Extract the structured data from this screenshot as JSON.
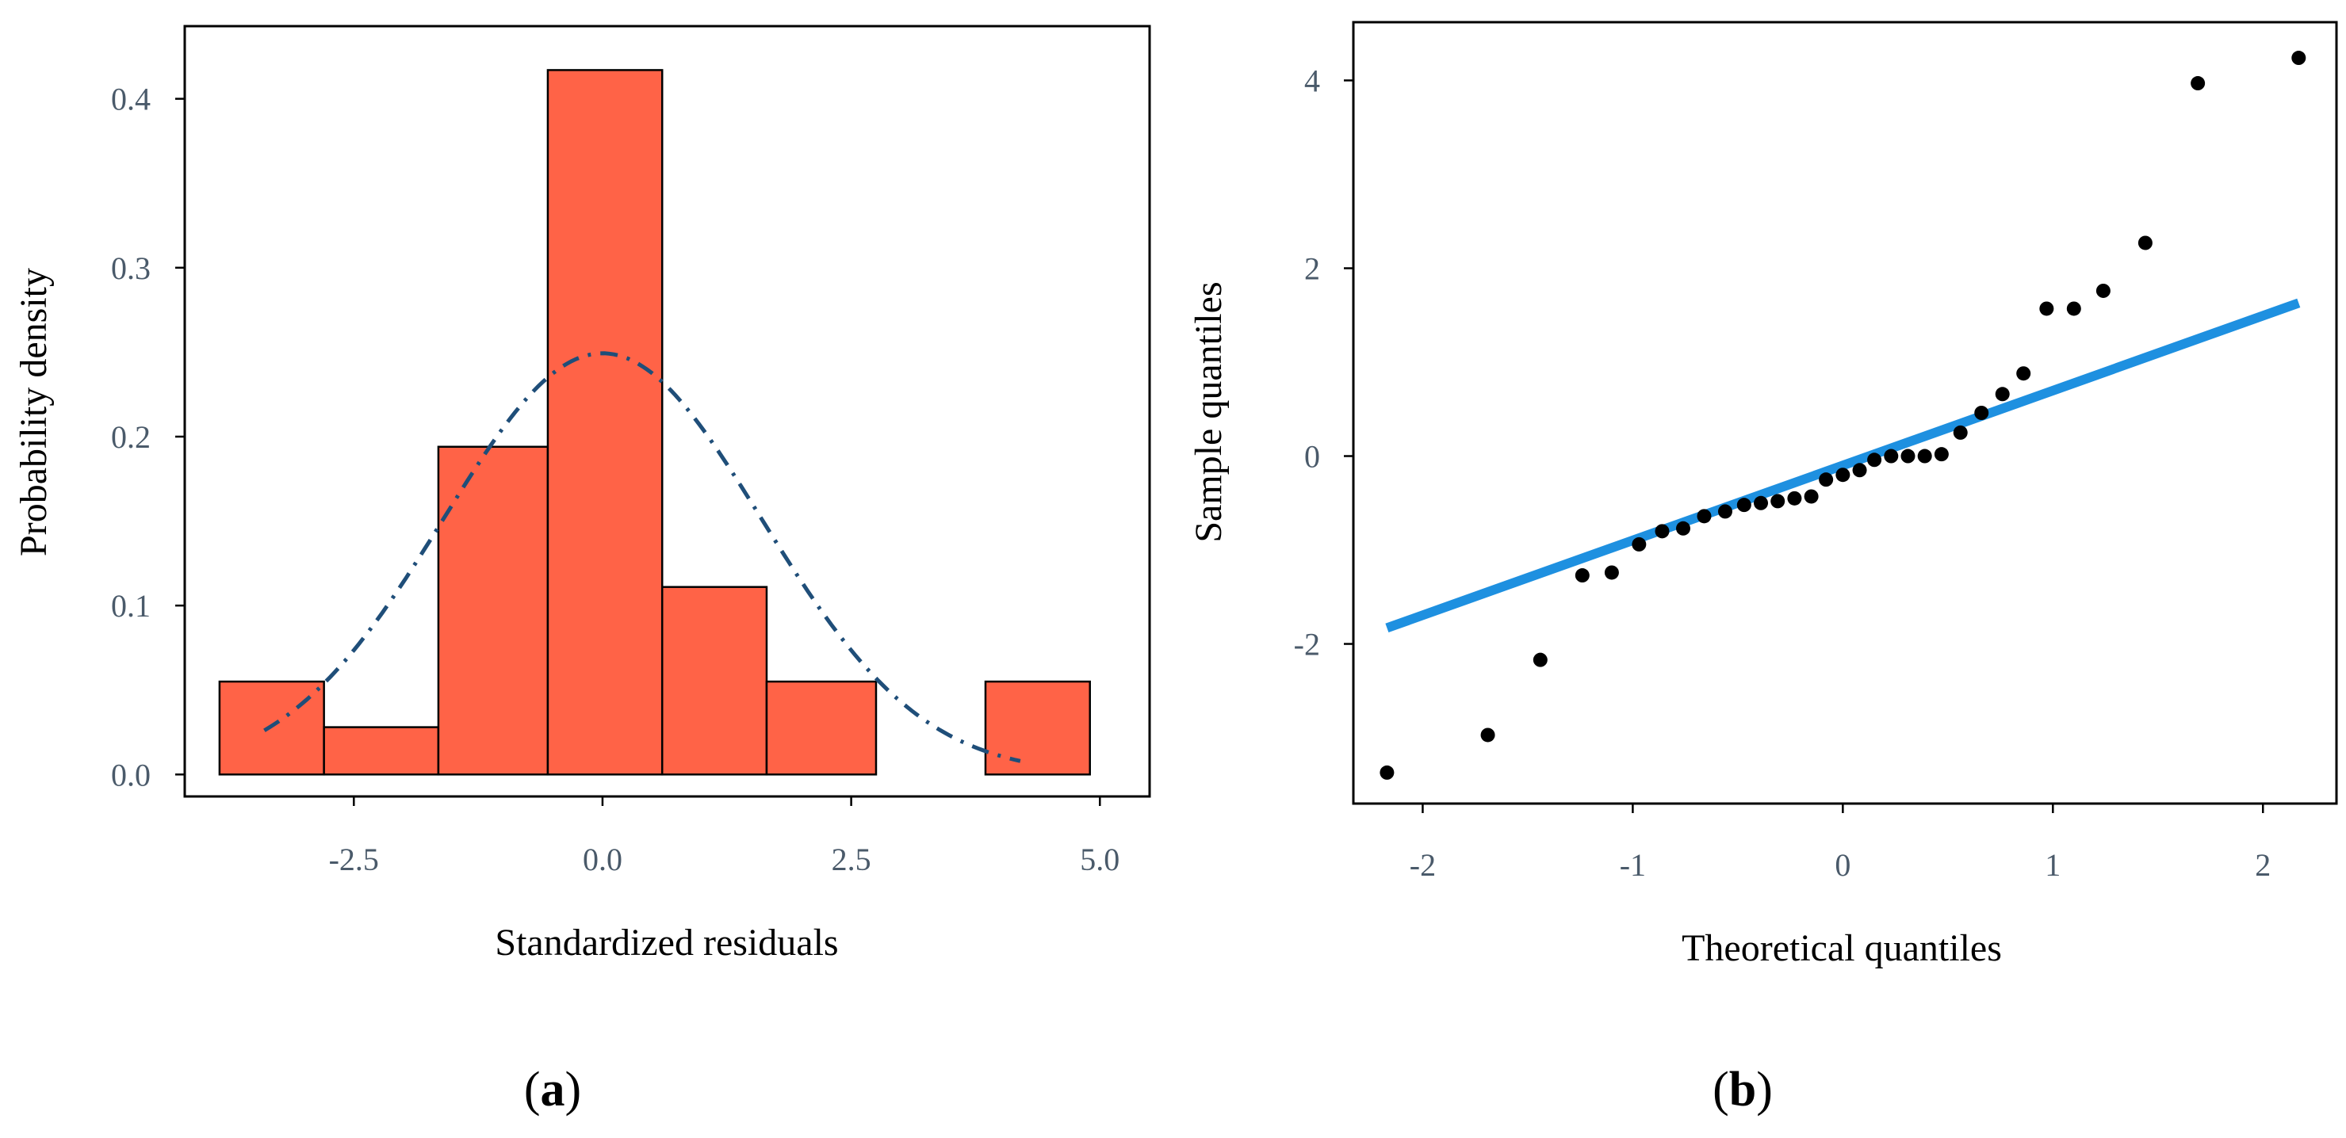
{
  "chart_data": [
    {
      "type": "histogram",
      "panel": "a",
      "xlabel": "Standardized residuals",
      "ylabel": "Probability density",
      "xlim": [
        -4.2,
        5.5
      ],
      "ylim": [
        -0.013,
        0.443
      ],
      "xticks": [
        -2.5,
        0.0,
        2.5,
        5.0
      ],
      "xtick_labels": [
        "-2.5",
        "0.0",
        "2.5",
        "5.0"
      ],
      "yticks": [
        0.0,
        0.1,
        0.2,
        0.3,
        0.4
      ],
      "ytick_labels": [
        "0.0",
        "0.1",
        "0.2",
        "0.3",
        "0.4"
      ],
      "bins": [
        {
          "x0": -3.85,
          "x1": -2.8,
          "density": 0.055
        },
        {
          "x0": -2.8,
          "x1": -1.65,
          "density": 0.028
        },
        {
          "x0": -1.65,
          "x1": -0.55,
          "density": 0.194
        },
        {
          "x0": -0.55,
          "x1": 0.6,
          "density": 0.417
        },
        {
          "x0": 0.6,
          "x1": 1.65,
          "density": 0.111
        },
        {
          "x0": 1.65,
          "x1": 2.75,
          "density": 0.055
        },
        {
          "x0": 2.75,
          "x1": 3.85,
          "density": 0.0
        },
        {
          "x0": 3.85,
          "x1": 4.9,
          "density": 0.055
        }
      ],
      "density_curve": {
        "mean": 0.0,
        "sd": 1.6,
        "x_from": -3.4,
        "x_to": 4.2,
        "style": "dash-dot"
      },
      "colors": {
        "bar": "#ff6347",
        "curve": "#1f4e79"
      }
    },
    {
      "type": "scatter",
      "panel": "b",
      "xlabel": "Theoretical quantiles",
      "ylabel": "Sample quantiles",
      "xlim": [
        -2.33,
        2.35
      ],
      "ylim": [
        -3.7,
        4.62
      ],
      "xticks": [
        -2,
        -1,
        0,
        1,
        2
      ],
      "xtick_labels": [
        "-2",
        "-1",
        "0",
        "1",
        "2"
      ],
      "yticks": [
        -2,
        0,
        2,
        4
      ],
      "ytick_labels": [
        "-2",
        "0",
        "2",
        "4"
      ],
      "points": [
        [
          -2.17,
          -3.37
        ],
        [
          -1.69,
          -2.97
        ],
        [
          -1.44,
          -2.17
        ],
        [
          -1.24,
          -1.27
        ],
        [
          -1.1,
          -1.24
        ],
        [
          -0.97,
          -0.94
        ],
        [
          -0.86,
          -0.8
        ],
        [
          -0.76,
          -0.77
        ],
        [
          -0.66,
          -0.64
        ],
        [
          -0.56,
          -0.59
        ],
        [
          -0.47,
          -0.52
        ],
        [
          -0.39,
          -0.5
        ],
        [
          -0.31,
          -0.48
        ],
        [
          -0.23,
          -0.45
        ],
        [
          -0.15,
          -0.43
        ],
        [
          -0.08,
          -0.25
        ],
        [
          0.0,
          -0.2
        ],
        [
          0.08,
          -0.15
        ],
        [
          0.15,
          -0.04
        ],
        [
          0.23,
          0.0
        ],
        [
          0.31,
          0.0
        ],
        [
          0.39,
          0.0
        ],
        [
          0.47,
          0.02
        ],
        [
          0.56,
          0.25
        ],
        [
          0.66,
          0.46
        ],
        [
          0.76,
          0.66
        ],
        [
          0.86,
          0.88
        ],
        [
          0.97,
          1.57
        ],
        [
          1.1,
          1.57
        ],
        [
          1.24,
          1.76
        ],
        [
          1.44,
          2.27
        ],
        [
          1.69,
          3.97
        ],
        [
          2.17,
          4.24
        ]
      ],
      "reference_line": {
        "x_from": -2.17,
        "y_from": -1.83,
        "x_to": 2.17,
        "y_to": 1.63
      },
      "colors": {
        "points": "#000000",
        "line": "#1e90e0"
      }
    }
  ],
  "panel_labels": {
    "a_open": "(",
    "a_letter": "a",
    "a_close": ")",
    "b_open": "(",
    "b_letter": "b",
    "b_close": ")"
  }
}
